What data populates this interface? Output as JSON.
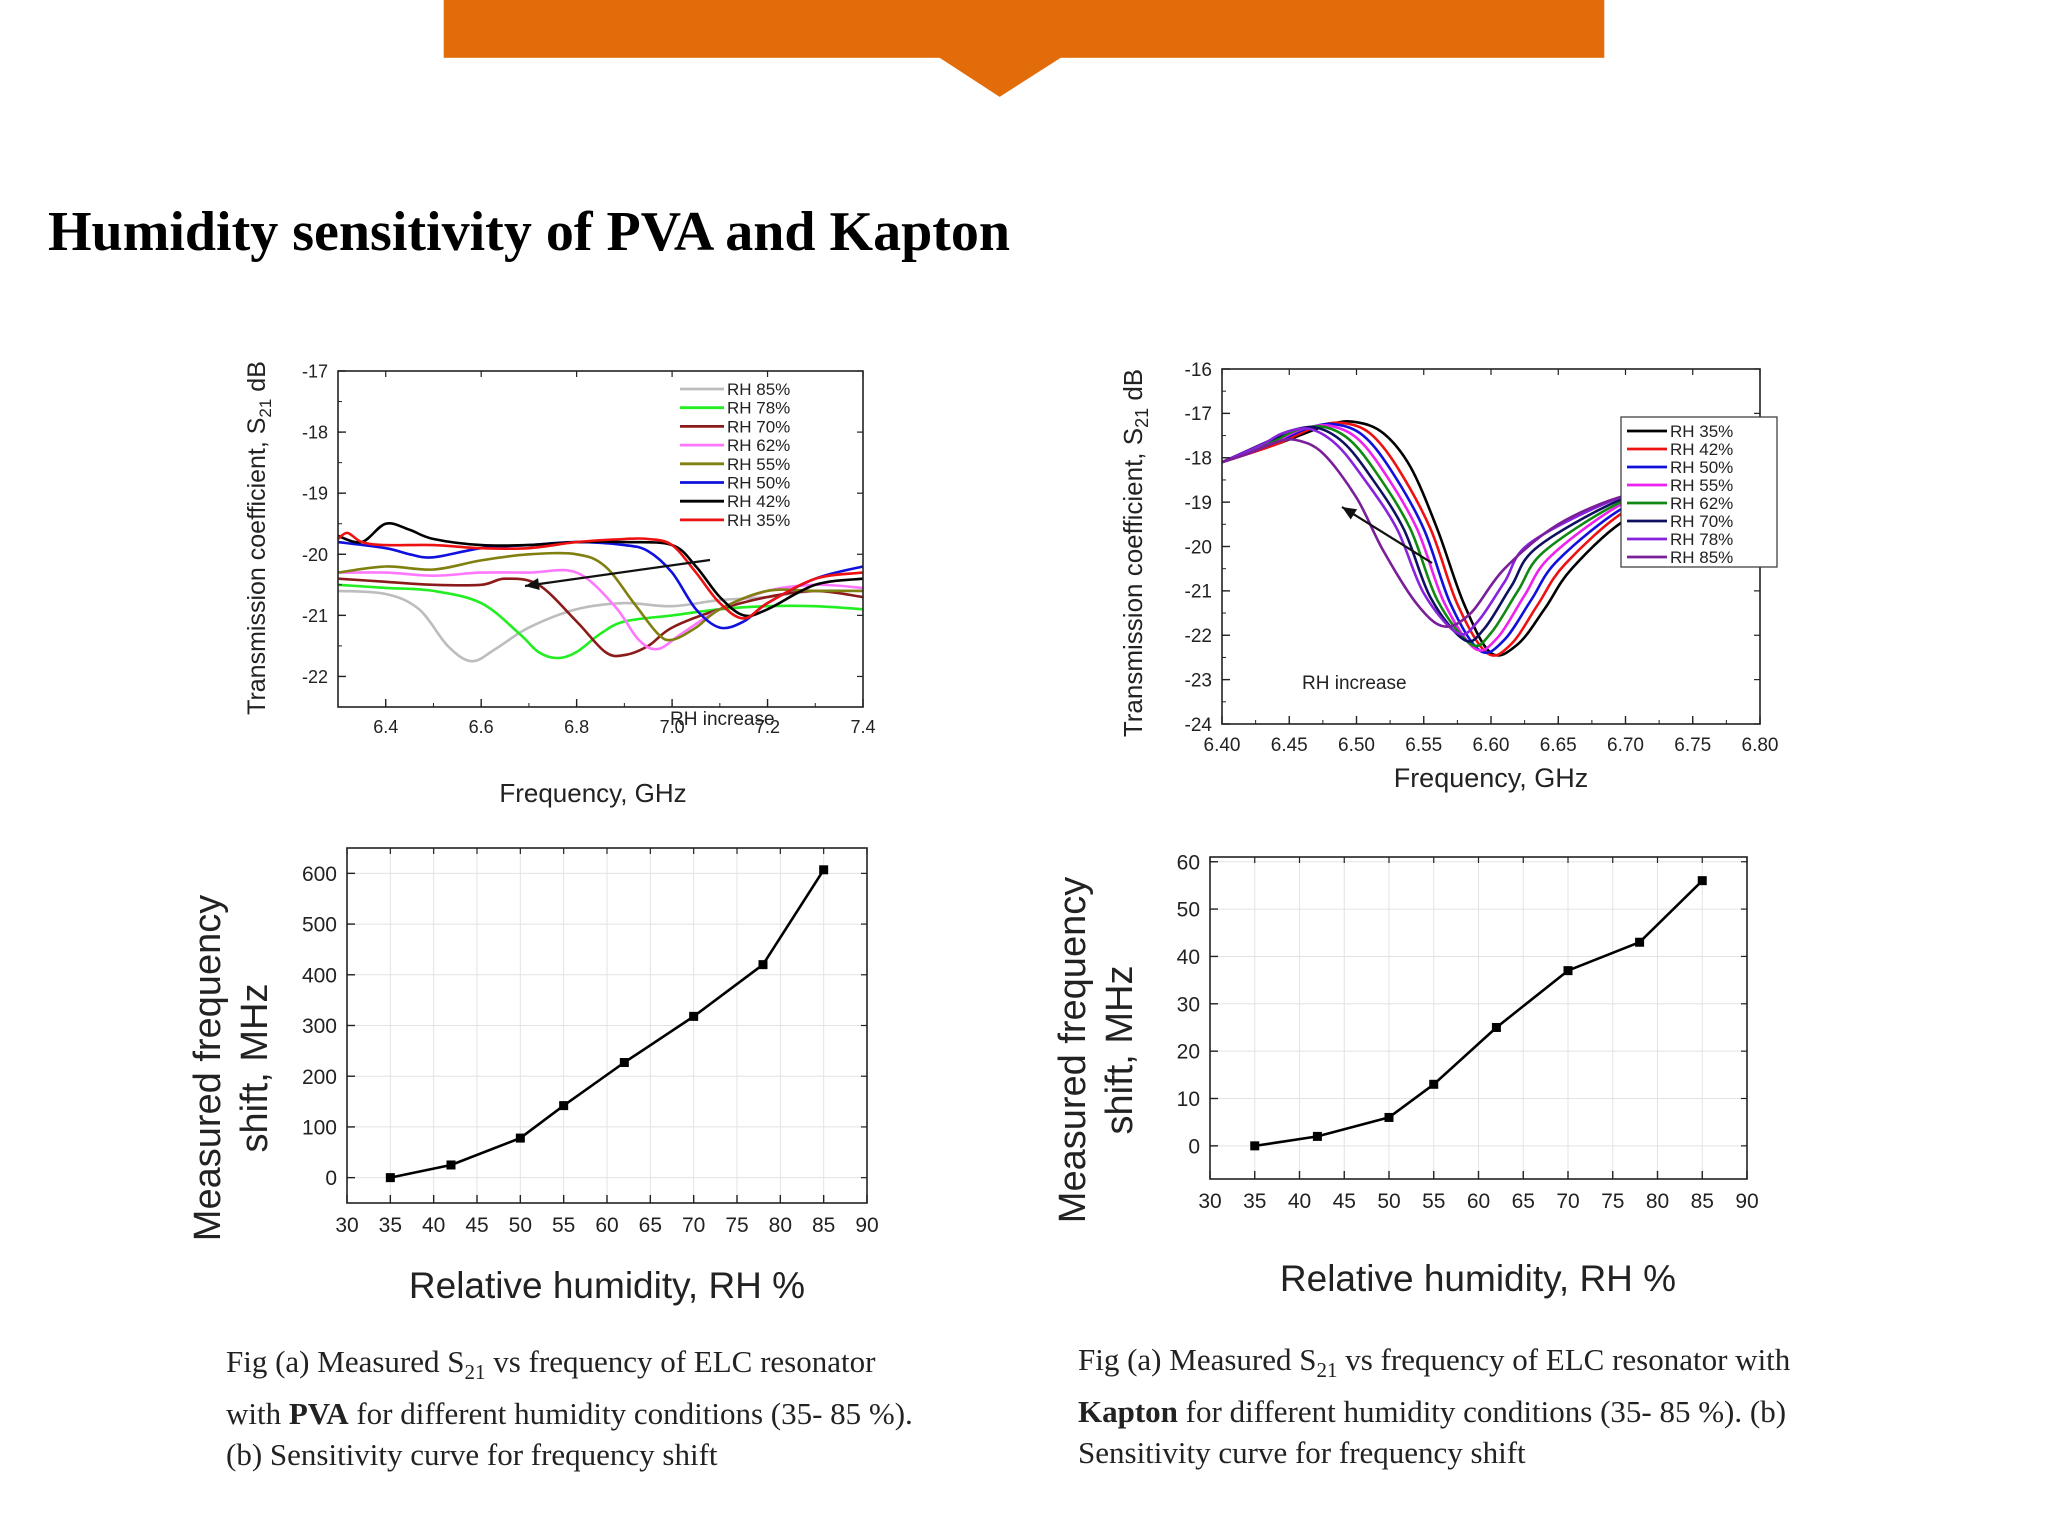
{
  "slide": {
    "title": "Humidity sensitivity of PVA and Kapton",
    "banner_color": "#E36C0A"
  },
  "chart_data": [
    {
      "id": "pva-s21",
      "type": "line",
      "xlabel": "Frequency, GHz",
      "ylabel_main": "Transmission coefficient, S",
      "ylabel_sub": "21",
      "ylabel_unit": " dB",
      "xlim": [
        6.3,
        7.4
      ],
      "ylim": [
        -22.5,
        -17
      ],
      "xticks": [
        "6.4",
        "6.6",
        "6.8",
        "7.0",
        "7.2",
        "7.4"
      ],
      "yticks": [
        "-17",
        "-18",
        "-19",
        "-20",
        "-21",
        "-22"
      ],
      "legend_position": "top-right",
      "annotation": {
        "text": "RH increase"
      },
      "series": [
        {
          "name": "RH 85%",
          "color": "#BDBDBD",
          "x": [
            6.3,
            6.4,
            6.47,
            6.53,
            6.58,
            6.63,
            6.7,
            6.8,
            6.9,
            7.0,
            7.1,
            7.2,
            7.3,
            7.4
          ],
          "y": [
            -20.6,
            -20.65,
            -20.9,
            -21.5,
            -21.75,
            -21.55,
            -21.2,
            -20.9,
            -20.8,
            -20.85,
            -20.75,
            -20.7,
            -20.6,
            -20.6
          ]
        },
        {
          "name": "RH 78%",
          "color": "#22EE22",
          "x": [
            6.3,
            6.4,
            6.5,
            6.6,
            6.68,
            6.72,
            6.76,
            6.8,
            6.85,
            6.9,
            7.0,
            7.1,
            7.2,
            7.3,
            7.4
          ],
          "y": [
            -20.5,
            -20.55,
            -20.6,
            -20.8,
            -21.3,
            -21.6,
            -21.7,
            -21.6,
            -21.3,
            -21.1,
            -21.0,
            -20.9,
            -20.85,
            -20.85,
            -20.9
          ]
        },
        {
          "name": "RH 70%",
          "color": "#8B1A1A",
          "x": [
            6.3,
            6.4,
            6.5,
            6.6,
            6.65,
            6.72,
            6.8,
            6.86,
            6.9,
            6.95,
            7.0,
            7.1,
            7.2,
            7.3,
            7.4
          ],
          "y": [
            -20.4,
            -20.45,
            -20.5,
            -20.5,
            -20.4,
            -20.5,
            -21.1,
            -21.6,
            -21.65,
            -21.5,
            -21.2,
            -20.9,
            -20.7,
            -20.6,
            -20.7
          ]
        },
        {
          "name": "RH 62%",
          "color": "#FF77FF",
          "x": [
            6.3,
            6.4,
            6.5,
            6.6,
            6.7,
            6.8,
            6.88,
            6.93,
            6.97,
            7.02,
            7.1,
            7.2,
            7.3,
            7.4
          ],
          "y": [
            -20.3,
            -20.3,
            -20.35,
            -20.3,
            -20.3,
            -20.3,
            -20.85,
            -21.4,
            -21.55,
            -21.3,
            -20.9,
            -20.6,
            -20.5,
            -20.55
          ]
        },
        {
          "name": "RH 55%",
          "color": "#808010",
          "x": [
            6.3,
            6.4,
            6.5,
            6.6,
            6.7,
            6.8,
            6.86,
            6.92,
            6.97,
            7.0,
            7.05,
            7.1,
            7.2,
            7.3,
            7.4
          ],
          "y": [
            -20.3,
            -20.2,
            -20.25,
            -20.1,
            -20.0,
            -20.0,
            -20.2,
            -20.8,
            -21.3,
            -21.4,
            -21.2,
            -20.9,
            -20.6,
            -20.6,
            -20.6
          ]
        },
        {
          "name": "RH 50%",
          "color": "#1010DD",
          "x": [
            6.3,
            6.4,
            6.45,
            6.5,
            6.6,
            6.7,
            6.8,
            6.9,
            6.95,
            7.0,
            7.05,
            7.1,
            7.15,
            7.2,
            7.3,
            7.4
          ],
          "y": [
            -19.8,
            -19.9,
            -20.0,
            -20.05,
            -19.9,
            -19.85,
            -19.8,
            -19.85,
            -19.95,
            -20.3,
            -20.9,
            -21.2,
            -21.1,
            -20.8,
            -20.4,
            -20.2
          ]
        },
        {
          "name": "RH 42%",
          "color": "#000000",
          "x": [
            6.3,
            6.35,
            6.4,
            6.45,
            6.5,
            6.6,
            6.7,
            6.8,
            6.9,
            7.0,
            7.05,
            7.1,
            7.15,
            7.2,
            7.3,
            7.4
          ],
          "y": [
            -19.7,
            -19.8,
            -19.5,
            -19.6,
            -19.75,
            -19.85,
            -19.85,
            -19.8,
            -19.8,
            -19.85,
            -20.2,
            -20.7,
            -21.0,
            -20.9,
            -20.5,
            -20.4
          ]
        },
        {
          "name": "RH 35%",
          "color": "#EE1111",
          "x": [
            6.3,
            6.32,
            6.35,
            6.4,
            6.5,
            6.6,
            6.7,
            6.8,
            6.9,
            6.95,
            7.0,
            7.05,
            7.1,
            7.15,
            7.2,
            7.3,
            7.4
          ],
          "y": [
            -19.75,
            -19.65,
            -19.8,
            -19.85,
            -19.85,
            -19.9,
            -19.9,
            -19.8,
            -19.75,
            -19.75,
            -19.85,
            -20.3,
            -20.8,
            -21.05,
            -20.8,
            -20.4,
            -20.3
          ]
        }
      ]
    },
    {
      "id": "kapton-s21",
      "type": "line",
      "xlabel": "Frequency, GHz",
      "ylabel_main": "Transmission coefficient, S",
      "ylabel_sub": "21",
      "ylabel_unit": " dB",
      "xlim": [
        6.4,
        6.8
      ],
      "ylim": [
        -24,
        -16
      ],
      "xticks": [
        "6.40",
        "6.45",
        "6.50",
        "6.55",
        "6.60",
        "6.65",
        "6.70",
        "6.75",
        "6.80"
      ],
      "yticks": [
        "-16",
        "-17",
        "-18",
        "-19",
        "-20",
        "-21",
        "-22",
        "-23",
        "-24"
      ],
      "legend_position": "bottom-right",
      "annotation": {
        "text": "RH increase"
      },
      "series": [
        {
          "name": "RH 35%",
          "color": "#000000",
          "x": [
            6.4,
            6.44,
            6.48,
            6.5,
            6.52,
            6.54,
            6.56,
            6.58,
            6.6,
            6.62,
            6.64,
            6.66,
            6.7,
            6.74,
            6.8
          ],
          "y": [
            -18.1,
            -17.7,
            -17.25,
            -17.2,
            -17.45,
            -18.2,
            -19.6,
            -21.3,
            -22.4,
            -22.2,
            -21.4,
            -20.5,
            -19.4,
            -19.0,
            -18.9
          ]
        },
        {
          "name": "RH 42%",
          "color": "#EE1111",
          "x": [
            6.4,
            6.44,
            6.47,
            6.49,
            6.51,
            6.53,
            6.555,
            6.575,
            6.597,
            6.615,
            6.635,
            6.655,
            6.7,
            6.74,
            6.8
          ],
          "y": [
            -18.1,
            -17.7,
            -17.3,
            -17.22,
            -17.45,
            -18.2,
            -19.6,
            -21.3,
            -22.4,
            -22.2,
            -21.3,
            -20.4,
            -19.2,
            -18.85,
            -18.8
          ]
        },
        {
          "name": "RH 50%",
          "color": "#1010DD",
          "x": [
            6.4,
            6.44,
            6.465,
            6.485,
            6.505,
            6.525,
            6.55,
            6.57,
            6.592,
            6.61,
            6.63,
            6.65,
            6.7,
            6.74,
            6.8
          ],
          "y": [
            -18.1,
            -17.65,
            -17.32,
            -17.25,
            -17.5,
            -18.25,
            -19.6,
            -21.3,
            -22.35,
            -22.1,
            -21.2,
            -20.3,
            -19.1,
            -18.8,
            -18.75
          ]
        },
        {
          "name": "RH 55%",
          "color": "#EE22EE",
          "x": [
            6.4,
            6.44,
            6.46,
            6.48,
            6.5,
            6.52,
            6.545,
            6.565,
            6.588,
            6.605,
            6.625,
            6.645,
            6.7,
            6.74,
            6.8
          ],
          "y": [
            -18.1,
            -17.62,
            -17.35,
            -17.28,
            -17.55,
            -18.3,
            -19.6,
            -21.25,
            -22.3,
            -22.05,
            -21.1,
            -20.2,
            -19.0,
            -18.78,
            -18.75
          ]
        },
        {
          "name": "RH 62%",
          "color": "#118811",
          "x": [
            6.4,
            6.44,
            6.455,
            6.475,
            6.495,
            6.515,
            6.54,
            6.56,
            6.585,
            6.6,
            6.62,
            6.64,
            6.7,
            6.74,
            6.8
          ],
          "y": [
            -18.1,
            -17.6,
            -17.38,
            -17.3,
            -17.6,
            -18.35,
            -19.6,
            -21.2,
            -22.2,
            -21.95,
            -21.0,
            -20.1,
            -18.95,
            -18.76,
            -18.75
          ]
        },
        {
          "name": "RH 70%",
          "color": "#101060",
          "x": [
            6.4,
            6.44,
            6.45,
            6.47,
            6.49,
            6.51,
            6.535,
            6.555,
            6.58,
            6.595,
            6.615,
            6.635,
            6.7,
            6.74,
            6.8
          ],
          "y": [
            -18.1,
            -17.55,
            -17.4,
            -17.32,
            -17.65,
            -18.4,
            -19.6,
            -21.15,
            -22.1,
            -21.85,
            -20.9,
            -20.0,
            -18.9,
            -18.75,
            -18.75
          ]
        },
        {
          "name": "RH 78%",
          "color": "#8822DD",
          "x": [
            6.4,
            6.43,
            6.445,
            6.465,
            6.485,
            6.505,
            6.53,
            6.55,
            6.575,
            6.59,
            6.61,
            6.63,
            6.7,
            6.74,
            6.8
          ],
          "y": [
            -18.1,
            -17.7,
            -17.45,
            -17.35,
            -17.7,
            -18.45,
            -19.6,
            -21.05,
            -21.95,
            -21.7,
            -20.8,
            -19.9,
            -18.85,
            -18.75,
            -18.75
          ]
        },
        {
          "name": "RH 85%",
          "color": "#7A1F9A",
          "x": [
            6.4,
            6.42,
            6.44,
            6.455,
            6.475,
            6.5,
            6.52,
            6.545,
            6.565,
            6.585,
            6.61,
            6.65,
            6.7,
            6.74,
            6.8
          ],
          "y": [
            -18.1,
            -17.9,
            -17.65,
            -17.6,
            -17.9,
            -18.9,
            -20.1,
            -21.3,
            -21.8,
            -21.5,
            -20.5,
            -19.5,
            -18.85,
            -18.75,
            -18.75
          ]
        }
      ]
    },
    {
      "id": "pva-shift",
      "type": "line",
      "xlabel": "Relative humidity, RH %",
      "ylabel_line1": "Measured frequency",
      "ylabel_line2": "shift, MHz",
      "xlim": [
        30,
        90
      ],
      "ylim": [
        -50,
        650
      ],
      "xticks": [
        "30",
        "35",
        "40",
        "45",
        "50",
        "55",
        "60",
        "65",
        "70",
        "75",
        "80",
        "85",
        "90"
      ],
      "yticks": [
        "0",
        "100",
        "200",
        "300",
        "400",
        "500",
        "600"
      ],
      "grid": true,
      "series": [
        {
          "color": "#000000",
          "x": [
            35,
            42,
            50,
            55,
            62,
            70,
            78,
            85
          ],
          "y": [
            0,
            25,
            78,
            142,
            227,
            318,
            420,
            607
          ]
        }
      ]
    },
    {
      "id": "kapton-shift",
      "type": "line",
      "xlabel": "Relative humidity, RH %",
      "ylabel_line1": "Measured frequency",
      "ylabel_line2": "shift, MHz",
      "xlim": [
        30,
        90
      ],
      "ylim": [
        -7,
        61
      ],
      "xticks": [
        "30",
        "35",
        "40",
        "45",
        "50",
        "55",
        "60",
        "65",
        "70",
        "75",
        "80",
        "85",
        "90"
      ],
      "yticks": [
        "0",
        "10",
        "20",
        "30",
        "40",
        "50",
        "60"
      ],
      "grid": true,
      "series": [
        {
          "color": "#000000",
          "x": [
            35,
            42,
            50,
            55,
            62,
            70,
            78,
            85
          ],
          "y": [
            0,
            2,
            6,
            13,
            25,
            37,
            43,
            56
          ]
        }
      ]
    }
  ],
  "captions": {
    "left": {
      "line1_pre": "Fig (a) Measured S",
      "line1_sub": "21",
      "line1_post": " vs frequency of ELC resonator",
      "line2_pre": "with ",
      "line2_bold": "PVA",
      "line2_post": " for different humidity conditions (35- 85 %).",
      "line3": "(b) Sensitivity curve for frequency shift"
    },
    "right": {
      "line1_pre": "Fig (a) Measured S",
      "line1_sub": "21",
      "line1_post": " vs frequency of ELC resonator with",
      "line2_bold": "Kapton",
      "line2_post": " for different humidity conditions (35- 85 %). (b)",
      "line3": "Sensitivity curve for frequency shift"
    }
  }
}
